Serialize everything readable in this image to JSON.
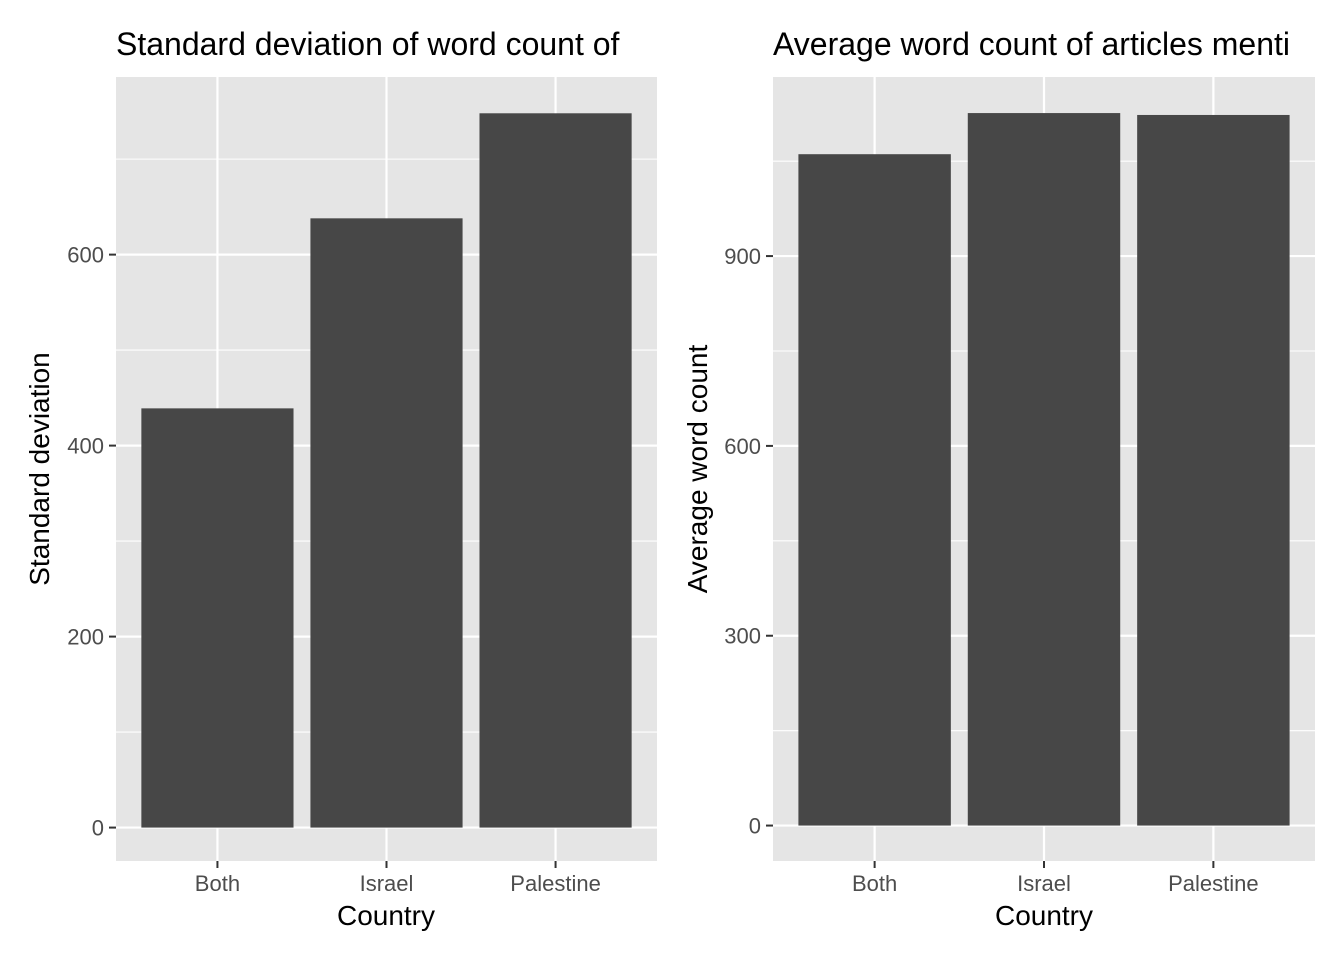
{
  "colors": {
    "panel_background": "#e5e5e5",
    "grid_line": "#ffffff",
    "bar_fill": "#474747",
    "tick_mark": "#333333",
    "tick_text": "#4d4d4d"
  },
  "chart_data": [
    {
      "type": "bar",
      "title": "Standard deviation of word count of",
      "xlabel": "Country",
      "ylabel": "Standard deviation",
      "categories": [
        "Both",
        "Israel",
        "Palestine"
      ],
      "values": [
        439,
        638,
        748
      ],
      "ylim": [
        -35,
        786
      ],
      "yticks": [
        0,
        200,
        400,
        600
      ],
      "ytick_labels": [
        "0",
        "200",
        "400",
        "600"
      ],
      "grid": true,
      "legend": "none"
    },
    {
      "type": "bar",
      "title": "Average word count of articles menti",
      "xlabel": "Country",
      "ylabel": "Average word count",
      "categories": [
        "Both",
        "Israel",
        "Palestine"
      ],
      "values": [
        1061,
        1126,
        1123
      ],
      "ylim": [
        -56,
        1183
      ],
      "yticks": [
        0,
        300,
        600,
        900
      ],
      "ytick_labels": [
        "0",
        "300",
        "600",
        "900"
      ],
      "grid": true,
      "legend": "none"
    }
  ]
}
